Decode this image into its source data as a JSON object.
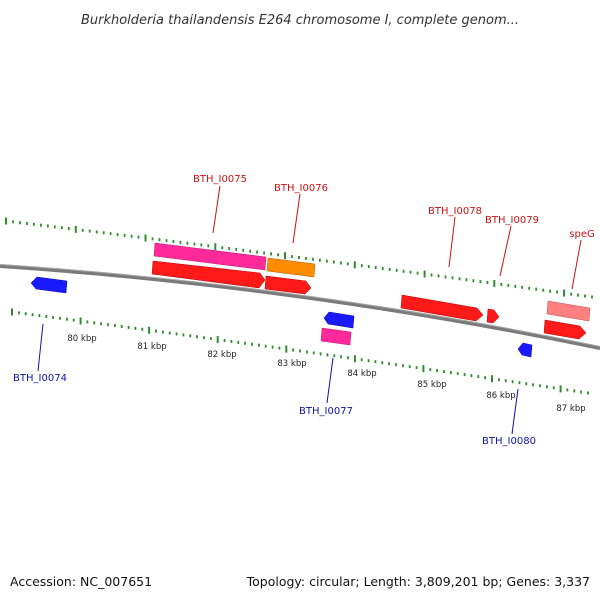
{
  "title": "Burkholderia thailandensis E264 chromosome I, complete genom...",
  "footer": {
    "accession": "Accession: NC_007651",
    "summary": "Topology: circular; Length: 3,809,201 bp; Genes: 3,337"
  },
  "colors": {
    "backbone": "#7a7a7a",
    "tick": "#2e8b2e",
    "forward_label": "#cc1111",
    "reverse_label": "#1111aa",
    "red_gene": "#ff1a1a",
    "magenta_gene": "#ff2a9a",
    "orange_gene": "#ff8c00",
    "salmon_gene": "#ff8080",
    "blue_gene": "#1a1aff"
  },
  "ruler": {
    "kbp_labels": [
      "80 kbp",
      "81 kbp",
      "82 kbp",
      "83 kbp",
      "84 kbp",
      "85 kbp",
      "86 kbp",
      "87 kbp"
    ]
  },
  "gene_labels": {
    "forward": [
      "BTH_I0075",
      "BTH_I0076",
      "BTH_I0078",
      "BTH_I0079",
      "speG"
    ],
    "reverse": [
      "BTH_I0074",
      "BTH_I0077",
      "BTH_I0080"
    ]
  }
}
